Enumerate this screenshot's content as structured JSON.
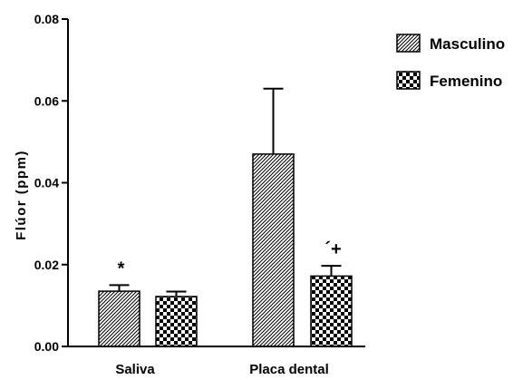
{
  "chart_data": {
    "type": "bar",
    "categories": [
      "Saliva",
      "Placa dental"
    ],
    "ylabel": "Flúor (ppm)",
    "xlabel": "",
    "ylim": [
      0,
      0.08
    ],
    "yticks": [
      "0.00",
      "0.02",
      "0.04",
      "0.06",
      "0.08"
    ],
    "series": [
      {
        "name": "Masculino",
        "pattern": "fine-diagonal-hatch",
        "values": [
          0.0135,
          0.047
        ],
        "errors": [
          0.0015,
          0.016
        ]
      },
      {
        "name": "Femenino",
        "pattern": "checkerboard",
        "values": [
          0.0122,
          0.0172
        ],
        "errors": [
          0.0012,
          0.0025
        ]
      }
    ],
    "annotations": [
      {
        "text": "*",
        "category": "Saliva",
        "series": "Masculino"
      },
      {
        "text": "´+",
        "category": "Placa dental",
        "series": "Femenino"
      }
    ],
    "legend": {
      "position": "top-right"
    },
    "grid": false
  }
}
